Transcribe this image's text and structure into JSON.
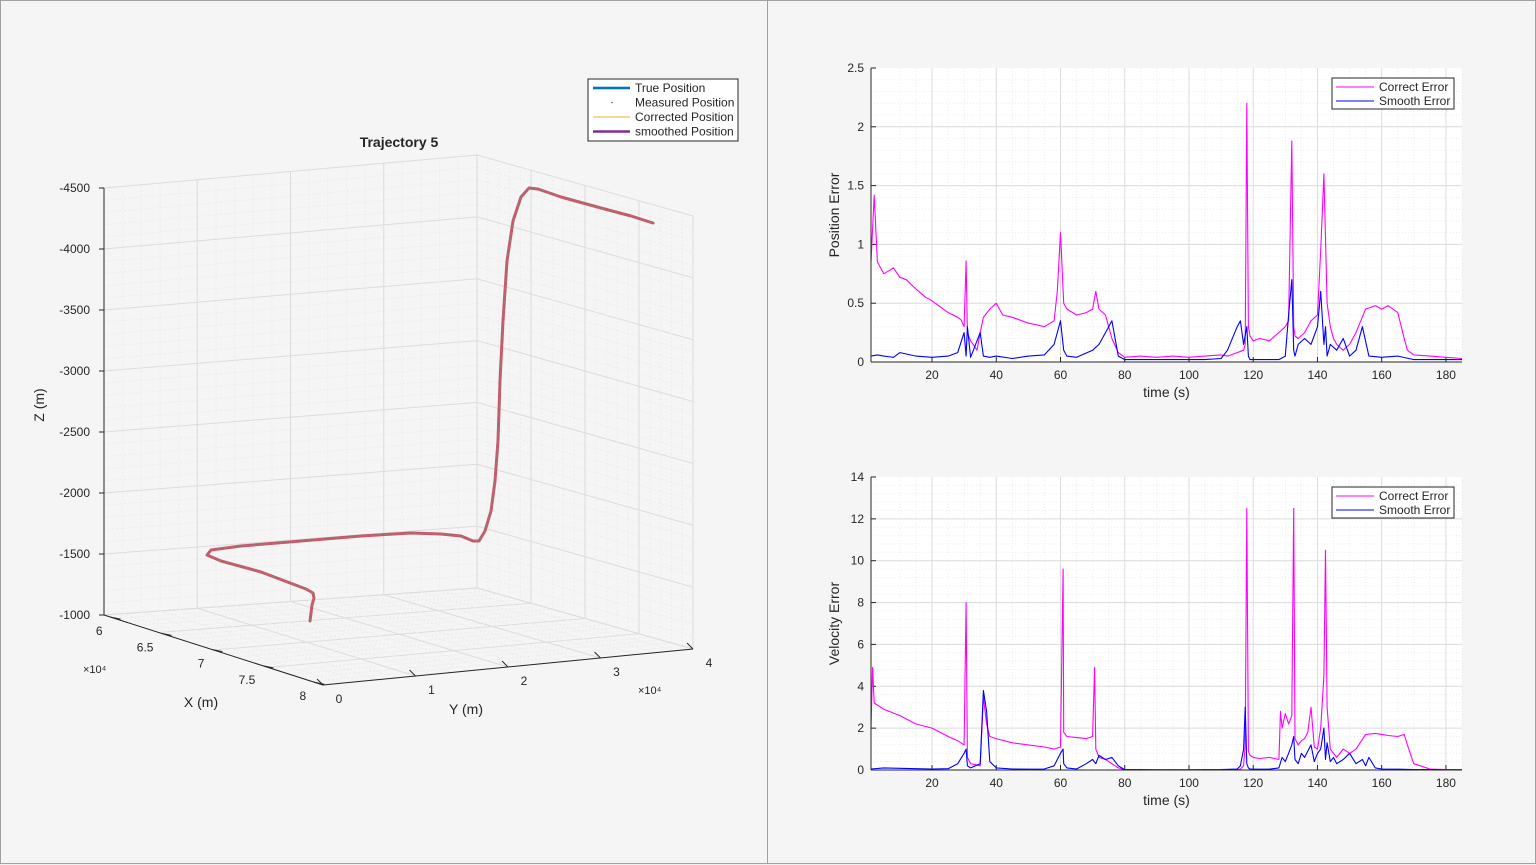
{
  "panels": {
    "left": {
      "name": "trajectory-3d"
    },
    "right": {
      "name": "error-plots"
    }
  },
  "chart_data": [
    {
      "type": "line3d",
      "title": "Trajectory 5",
      "xlabel": "X (m)",
      "ylabel": "Y (m)",
      "zlabel": "Z (m)",
      "x_ticks": [
        "6",
        "6.5",
        "7",
        "7.5",
        "8"
      ],
      "x_exponent": "×10⁴",
      "y_ticks": [
        "0",
        "1",
        "2",
        "3",
        "4"
      ],
      "y_exponent": "×10⁴",
      "z_ticks": [
        "-4500",
        "-4000",
        "-3500",
        "-3000",
        "-2500",
        "-2000",
        "-1500",
        "-1000"
      ],
      "zlim": [
        -4500,
        -1000
      ],
      "z_reversed": true,
      "grid": true,
      "legend": {
        "placement": "top-right",
        "entries": [
          {
            "name": "True Position",
            "color": "#0072bd",
            "style": "line-thick"
          },
          {
            "name": "Measured Position",
            "color": "#555555",
            "style": "dot"
          },
          {
            "name": "Corrected Position",
            "color": "#edb120",
            "style": "line-thin"
          },
          {
            "name": "smoothed Position",
            "color": "#7e2f8e",
            "style": "line-thick"
          }
        ]
      },
      "trajectory_color": "#c45a6a"
    },
    {
      "type": "line",
      "xlabel": "time (s)",
      "ylabel": "Position Error",
      "xlim": [
        1,
        185
      ],
      "ylim": [
        0,
        2.5
      ],
      "x_ticks": [
        "20",
        "40",
        "60",
        "80",
        "100",
        "120",
        "140",
        "160",
        "180"
      ],
      "y_ticks": [
        "0",
        "0.5",
        "1",
        "1.5",
        "2",
        "2.5"
      ],
      "y_tick_values": [
        0,
        0.5,
        1,
        1.5,
        2,
        2.5
      ],
      "grid": true,
      "legend": {
        "placement": "top-right"
      },
      "series": [
        {
          "name": "Correct Error",
          "color": "#ff00ff",
          "x": [
            1,
            2,
            3,
            5,
            8,
            10,
            12,
            15,
            18,
            20,
            22,
            25,
            28,
            29,
            30,
            30.6,
            31,
            32,
            34,
            35,
            36,
            38,
            40,
            42,
            45,
            48,
            50,
            52,
            55,
            58,
            59,
            60,
            61,
            62,
            65,
            68,
            70,
            71,
            72,
            74,
            76,
            78,
            80,
            85,
            90,
            95,
            100,
            105,
            110,
            112,
            115,
            117,
            117.5,
            118,
            118.5,
            119,
            120,
            122,
            125,
            128,
            130,
            131,
            132,
            132.6,
            133,
            134,
            136,
            138,
            140,
            141,
            142,
            143,
            144,
            145,
            146,
            148,
            150,
            152,
            155,
            158,
            160,
            162,
            165,
            167,
            168,
            170,
            175,
            180,
            185
          ],
          "y": [
            0.85,
            1.42,
            0.85,
            0.75,
            0.8,
            0.72,
            0.7,
            0.62,
            0.55,
            0.52,
            0.48,
            0.42,
            0.38,
            0.36,
            0.3,
            0.86,
            0.25,
            0.18,
            0.1,
            0.25,
            0.38,
            0.45,
            0.5,
            0.4,
            0.38,
            0.35,
            0.33,
            0.32,
            0.3,
            0.35,
            0.6,
            1.1,
            0.5,
            0.45,
            0.4,
            0.42,
            0.45,
            0.6,
            0.45,
            0.4,
            0.2,
            0.08,
            0.04,
            0.05,
            0.04,
            0.05,
            0.04,
            0.05,
            0.06,
            0.05,
            0.08,
            0.1,
            0.15,
            2.2,
            0.3,
            0.22,
            0.18,
            0.2,
            0.18,
            0.25,
            0.3,
            0.35,
            1.88,
            0.3,
            0.22,
            0.2,
            0.25,
            0.35,
            0.4,
            0.95,
            1.6,
            0.5,
            0.3,
            0.2,
            0.15,
            0.1,
            0.15,
            0.25,
            0.45,
            0.48,
            0.45,
            0.48,
            0.42,
            0.2,
            0.1,
            0.06,
            0.05,
            0.04,
            0.03
          ]
        },
        {
          "name": "Smooth Error",
          "color": "#0000ff",
          "x": [
            1,
            3,
            5,
            8,
            10,
            15,
            20,
            25,
            28,
            30,
            30.6,
            31,
            32,
            35,
            36,
            38,
            40,
            45,
            50,
            55,
            58,
            60,
            61,
            62,
            65,
            70,
            72,
            74,
            76,
            77,
            78,
            80,
            85,
            90,
            100,
            105,
            110,
            112,
            115,
            116,
            117,
            118,
            118.5,
            119,
            120,
            125,
            128,
            130,
            131,
            132,
            132.6,
            133,
            134,
            136,
            138,
            140,
            141,
            142,
            142.5,
            143,
            144,
            146,
            148,
            150,
            152,
            154,
            156,
            160,
            165,
            170,
            175,
            180,
            185
          ],
          "y": [
            0.05,
            0.06,
            0.05,
            0.04,
            0.08,
            0.05,
            0.04,
            0.05,
            0.08,
            0.25,
            0.05,
            0.3,
            0.04,
            0.25,
            0.05,
            0.04,
            0.05,
            0.03,
            0.05,
            0.06,
            0.15,
            0.35,
            0.1,
            0.05,
            0.04,
            0.1,
            0.15,
            0.25,
            0.35,
            0.2,
            0.05,
            0.02,
            0.02,
            0.02,
            0.02,
            0.02,
            0.03,
            0.1,
            0.3,
            0.35,
            0.15,
            0.3,
            0.05,
            0.02,
            0.02,
            0.02,
            0.02,
            0.05,
            0.4,
            0.7,
            0.1,
            0.05,
            0.15,
            0.2,
            0.15,
            0.3,
            0.6,
            0.15,
            0.3,
            0.05,
            0.15,
            0.1,
            0.2,
            0.05,
            0.1,
            0.3,
            0.05,
            0.04,
            0.05,
            0.02,
            0.02,
            0.02,
            0.02
          ]
        }
      ]
    },
    {
      "type": "line",
      "xlabel": "time (s)",
      "ylabel": "Velocity Error",
      "xlim": [
        1,
        185
      ],
      "ylim": [
        0,
        14
      ],
      "x_ticks": [
        "20",
        "40",
        "60",
        "80",
        "100",
        "120",
        "140",
        "160",
        "180"
      ],
      "y_ticks": [
        "0",
        "2",
        "4",
        "6",
        "8",
        "10",
        "12",
        "14"
      ],
      "y_tick_values": [
        0,
        2,
        4,
        6,
        8,
        10,
        12,
        14
      ],
      "grid": true,
      "legend": {
        "placement": "top-right"
      },
      "series": [
        {
          "name": "Correct Error",
          "color": "#ff00ff",
          "x": [
            1,
            1.5,
            2,
            5,
            10,
            15,
            20,
            25,
            28,
            29,
            30,
            30.6,
            31,
            32,
            35,
            36,
            37,
            38,
            40,
            45,
            50,
            55,
            58,
            59,
            60,
            60.8,
            61,
            62,
            65,
            68,
            70,
            70.6,
            71,
            72,
            74,
            76,
            78,
            80,
            90,
            100,
            110,
            115,
            116,
            117,
            117.5,
            118,
            118.5,
            119,
            120,
            122,
            125,
            128,
            128.5,
            129,
            130,
            131,
            132,
            132.6,
            133,
            134,
            135,
            136,
            137,
            138,
            139,
            140,
            141,
            142,
            142.5,
            143,
            144,
            145,
            146,
            148,
            150,
            152,
            155,
            158,
            160,
            162,
            165,
            167,
            168,
            170,
            175,
            180,
            185
          ],
          "y": [
            2,
            4.9,
            3.2,
            2.9,
            2.6,
            2.2,
            2.0,
            1.6,
            1.4,
            1.3,
            1.2,
            8.0,
            0.6,
            0.3,
            0.2,
            3.5,
            2.2,
            1.6,
            1.5,
            1.3,
            1.2,
            1.1,
            1.0,
            1.05,
            1.1,
            9.6,
            1.8,
            1.6,
            1.55,
            1.5,
            1.6,
            4.9,
            1.0,
            0.6,
            0.5,
            0.3,
            0.1,
            0.02,
            0.01,
            0.01,
            0.01,
            0.02,
            0.04,
            0.2,
            1.2,
            12.5,
            0.9,
            0.7,
            0.6,
            0.55,
            0.6,
            0.5,
            2.8,
            2.0,
            2.7,
            2.2,
            2.6,
            12.5,
            1.5,
            1.2,
            1.4,
            1.5,
            1.8,
            3.0,
            1.1,
            1.0,
            2.0,
            4.5,
            10.5,
            3.0,
            1.0,
            0.8,
            0.6,
            1.0,
            0.8,
            1.0,
            1.7,
            1.75,
            1.7,
            1.65,
            1.6,
            1.7,
            1.2,
            0.3,
            0.05,
            0.02,
            0.01
          ]
        },
        {
          "name": "Smooth Error",
          "color": "#0000ff",
          "x": [
            1,
            5,
            10,
            15,
            20,
            25,
            28,
            30,
            30.6,
            31,
            32,
            35,
            36,
            37,
            38,
            40,
            45,
            50,
            55,
            58,
            60,
            60.8,
            61,
            62,
            65,
            68,
            70,
            71,
            72,
            74,
            76,
            78,
            80,
            90,
            100,
            110,
            115,
            116,
            117,
            117.5,
            118,
            118.5,
            119,
            120,
            125,
            128,
            129,
            130,
            131,
            132,
            132.6,
            133,
            134,
            135,
            136,
            138,
            139,
            140,
            141,
            142,
            142.5,
            143,
            144,
            145,
            146,
            148,
            150,
            152,
            154,
            155,
            156,
            158,
            160,
            165,
            170,
            175,
            180,
            185
          ],
          "y": [
            0.05,
            0.1,
            0.08,
            0.06,
            0.05,
            0.06,
            0.3,
            0.8,
            1.0,
            0.2,
            0.1,
            0.3,
            3.8,
            2.8,
            0.4,
            0.1,
            0.05,
            0.04,
            0.05,
            0.2,
            0.8,
            1.0,
            0.3,
            0.1,
            0.05,
            0.3,
            0.5,
            0.3,
            0.7,
            0.5,
            0.6,
            0.2,
            0.02,
            0.01,
            0.01,
            0.02,
            0.05,
            0.2,
            1.0,
            3.0,
            0.3,
            0.1,
            0.05,
            0.04,
            0.04,
            0.1,
            0.6,
            0.4,
            0.8,
            1.2,
            1.6,
            0.5,
            0.3,
            0.8,
            0.6,
            1.2,
            0.4,
            0.8,
            1.0,
            2.0,
            0.5,
            1.3,
            0.4,
            0.6,
            0.3,
            0.5,
            0.8,
            0.3,
            0.5,
            0.2,
            0.6,
            0.1,
            0.05,
            0.04,
            0.02,
            0.02,
            0.01,
            0.01
          ]
        }
      ]
    }
  ]
}
